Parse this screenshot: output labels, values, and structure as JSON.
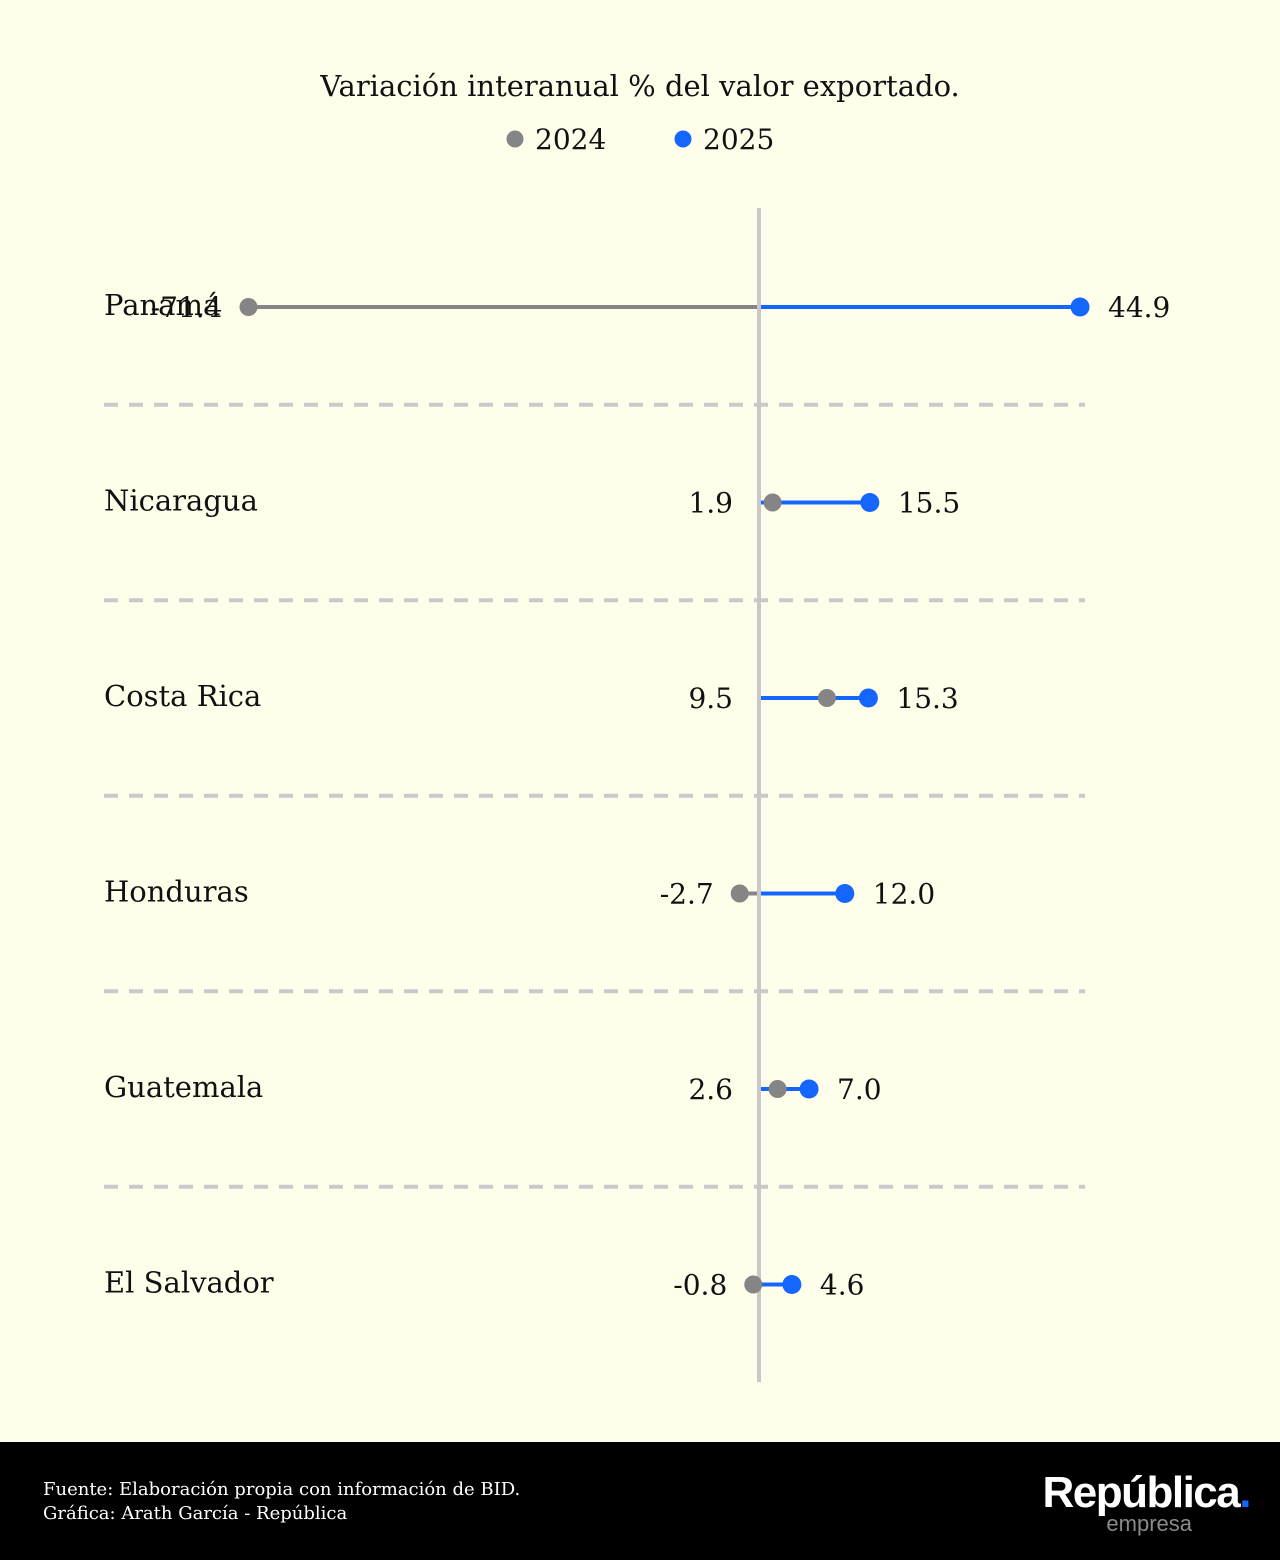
{
  "chart_data": {
    "type": "dumbbell",
    "title": "Variación interanual % del valor exportado.",
    "legend": {
      "placement": "top-center",
      "entries": [
        {
          "name": "2024",
          "color": "#858585"
        },
        {
          "name": "2025",
          "color": "#1565ff"
        }
      ]
    },
    "categories": [
      "Panamá",
      "Nicaragua",
      "Costa Rica",
      "Honduras",
      "Guatemala",
      "El Salvador"
    ],
    "series": [
      {
        "name": "2024",
        "color": "#858585",
        "values": [
          -71.4,
          1.9,
          9.5,
          -2.7,
          2.6,
          -0.8
        ],
        "labels": [
          "-71.4",
          "1.9",
          "9.5",
          "-2.7",
          "2.6",
          "-0.8"
        ]
      },
      {
        "name": "2025",
        "color": "#1565ff",
        "values": [
          44.9,
          15.5,
          15.3,
          12.0,
          7.0,
          4.6
        ],
        "labels": [
          "44.9",
          "15.5",
          "15.3",
          "12.0",
          "7.0",
          "4.6"
        ]
      }
    ],
    "reference_line": 0,
    "grid": "dashed separators between rows"
  },
  "footer": {
    "source": "Fuente: Elaboración propia con información de BID.",
    "credit": "Gráfica: Arath García - República"
  },
  "brand": {
    "name": "República",
    "dot": ".",
    "subtitle": "empresa"
  },
  "colors": {
    "background": "#fffeea",
    "axis": "#c8c8c8",
    "separator": "#c9c9c9",
    "footer_bg": "#000000"
  }
}
